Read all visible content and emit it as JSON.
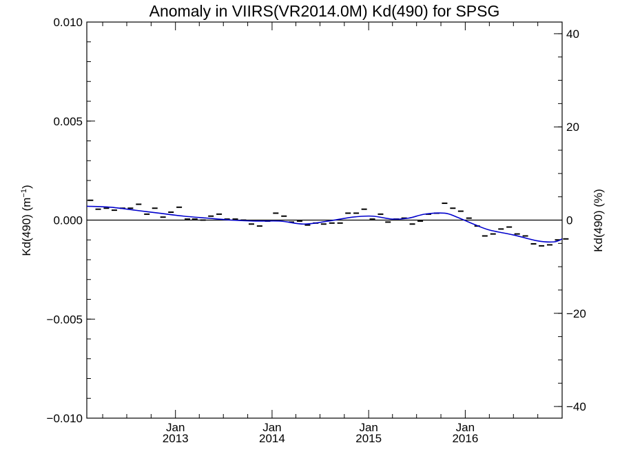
{
  "chart_data": {
    "type": "line",
    "title": "Anomaly in VIIRS(VR2014.0M) Kd(490) for SPSG",
    "ylabel_left_main": "Kd(490) (m",
    "ylabel_left_sup": "−1",
    "ylabel_left_close": ")",
    "ylabel_right": "Kd(490) (%)",
    "x_range": [
      "2012-02-01",
      "2017-01-01"
    ],
    "x_tick_labels": [
      {
        "month": "Jan",
        "year": "2013",
        "date": "2013-01-01"
      },
      {
        "month": "Jan",
        "year": "2014",
        "date": "2014-01-01"
      },
      {
        "month": "Jan",
        "year": "2015",
        "date": "2015-01-01"
      },
      {
        "month": "Jan",
        "year": "2016",
        "date": "2016-01-01"
      }
    ],
    "ylim_left": [
      -0.01,
      0.01
    ],
    "yticks_left": [
      "0.010",
      "0.005",
      "0.000",
      "−0.005",
      "−0.010"
    ],
    "yticks_left_values": [
      0.01,
      0.005,
      0.0,
      -0.005,
      -0.01
    ],
    "ylim_right": [
      -42.5,
      42.5
    ],
    "yticks_right": [
      "40",
      "20",
      "0",
      "−20",
      "−40"
    ],
    "yticks_right_values": [
      40,
      20,
      0,
      -20,
      -40
    ],
    "zero_line": true,
    "grid": false,
    "series": [
      {
        "kind": "monthly-markers",
        "color": "#000000",
        "points": [
          [
            "2012-02",
            0.001
          ],
          [
            "2012-03",
            0.00055
          ],
          [
            "2012-04",
            0.0006
          ],
          [
            "2012-05",
            0.0005
          ],
          [
            "2012-06",
            0.0006
          ],
          [
            "2012-07",
            0.0006
          ],
          [
            "2012-08",
            0.0008
          ],
          [
            "2012-09",
            0.0003
          ],
          [
            "2012-10",
            0.0006
          ],
          [
            "2012-11",
            0.00015
          ],
          [
            "2012-12",
            0.0004
          ],
          [
            "2013-01",
            0.00065
          ],
          [
            "2013-02",
            5e-05
          ],
          [
            "2013-03",
            5e-05
          ],
          [
            "2013-04",
            0.0
          ],
          [
            "2013-05",
            0.0002
          ],
          [
            "2013-06",
            0.0003
          ],
          [
            "2013-07",
            5e-05
          ],
          [
            "2013-08",
            5e-05
          ],
          [
            "2013-09",
            0.0
          ],
          [
            "2013-10",
            -0.0002
          ],
          [
            "2013-11",
            -0.0003
          ],
          [
            "2013-12",
            -5e-05
          ],
          [
            "2014-01",
            0.00035
          ],
          [
            "2014-02",
            0.0002
          ],
          [
            "2014-03",
            -0.0001
          ],
          [
            "2014-04",
            -5e-05
          ],
          [
            "2014-05",
            -0.00025
          ],
          [
            "2014-06",
            -0.00015
          ],
          [
            "2014-07",
            -0.0002
          ],
          [
            "2014-08",
            -0.00015
          ],
          [
            "2014-09",
            -0.00015
          ],
          [
            "2014-10",
            0.00035
          ],
          [
            "2014-11",
            0.00035
          ],
          [
            "2014-12",
            0.00055
          ],
          [
            "2015-01",
            5e-05
          ],
          [
            "2015-02",
            0.0003
          ],
          [
            "2015-03",
            -0.0001
          ],
          [
            "2015-04",
            5e-05
          ],
          [
            "2015-05",
            0.0001
          ],
          [
            "2015-06",
            -0.0002
          ],
          [
            "2015-07",
            -5e-05
          ],
          [
            "2015-08",
            0.0003
          ],
          [
            "2015-09",
            0.00035
          ],
          [
            "2015-10",
            0.00085
          ],
          [
            "2015-11",
            0.0006
          ],
          [
            "2015-12",
            0.00045
          ],
          [
            "2016-01",
            0.0001
          ],
          [
            "2016-02",
            -0.0003
          ],
          [
            "2016-03",
            -0.0008
          ],
          [
            "2016-04",
            -0.0007
          ],
          [
            "2016-05",
            -0.00045
          ],
          [
            "2016-06",
            -0.00035
          ],
          [
            "2016-07",
            -0.0007
          ],
          [
            "2016-08",
            -0.0008
          ],
          [
            "2016-09",
            -0.0012
          ],
          [
            "2016-10",
            -0.0013
          ],
          [
            "2016-11",
            -0.00125
          ],
          [
            "2016-12",
            -0.001
          ],
          [
            "2017-01",
            -0.00095
          ]
        ]
      },
      {
        "kind": "smoothed-line",
        "color": "#0000cc",
        "points": [
          [
            "2012-02-01",
            0.0007
          ],
          [
            "2012-05-01",
            0.00065
          ],
          [
            "2012-08-01",
            0.0005
          ],
          [
            "2012-11-01",
            0.00035
          ],
          [
            "2013-02-01",
            0.0002
          ],
          [
            "2013-05-01",
            0.0001
          ],
          [
            "2013-08-01",
            0.0
          ],
          [
            "2013-11-01",
            -5e-05
          ],
          [
            "2014-02-01",
            -5e-05
          ],
          [
            "2014-05-01",
            -0.0002
          ],
          [
            "2014-08-01",
            -5e-05
          ],
          [
            "2014-11-01",
            0.00015
          ],
          [
            "2015-01-15",
            0.0002
          ],
          [
            "2015-04-01",
            5e-05
          ],
          [
            "2015-06-01",
            0.0001
          ],
          [
            "2015-08-01",
            0.0003
          ],
          [
            "2015-10-15",
            0.00035
          ],
          [
            "2015-12-01",
            0.00015
          ],
          [
            "2016-02-01",
            -0.0002
          ],
          [
            "2016-04-01",
            -0.0005
          ],
          [
            "2016-07-01",
            -0.00075
          ],
          [
            "2016-10-01",
            -0.00105
          ],
          [
            "2016-12-01",
            -0.0011
          ],
          [
            "2017-01-01",
            -0.00095
          ]
        ]
      }
    ]
  }
}
